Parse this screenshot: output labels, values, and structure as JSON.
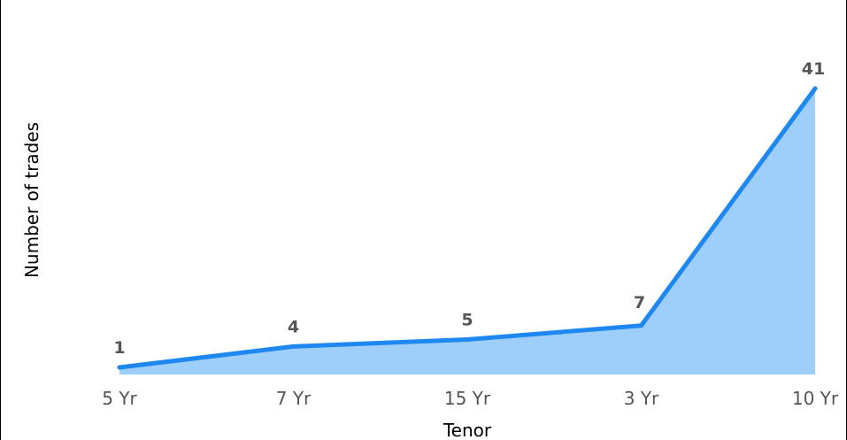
{
  "chart_data": {
    "type": "area",
    "title": "",
    "xlabel": "Tenor",
    "ylabel": "Number of trades",
    "categories": [
      "5 Yr",
      "7 Yr",
      "15 Yr",
      "3 Yr",
      "10 Yr"
    ],
    "series": [
      {
        "values": [
          1,
          4,
          5,
          7,
          41
        ]
      }
    ],
    "ylim": [
      0,
      41
    ],
    "grid": false,
    "data_labels": true,
    "colors": {
      "line": "#1E88F0",
      "fill": "#9ECFFA",
      "label_text": "#555555",
      "tick_text": "#555555",
      "axis_title": "#000000"
    }
  }
}
